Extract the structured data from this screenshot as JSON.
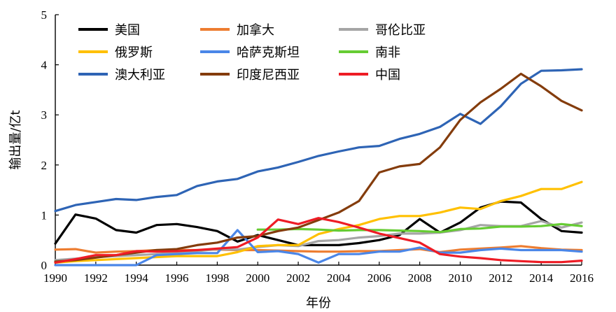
{
  "chart_data": {
    "type": "line",
    "title": "",
    "xlabel": "年份",
    "ylabel": "输出量/亿t",
    "xlim": [
      1990,
      2016
    ],
    "ylim": [
      0,
      5
    ],
    "xticks": [
      "1990",
      "1992",
      "1994",
      "1996",
      "1998",
      "2000",
      "2002",
      "2004",
      "2006",
      "2008",
      "2010",
      "2012",
      "2014",
      "2016"
    ],
    "yticks": [
      "0",
      "1",
      "2",
      "3",
      "4",
      "5"
    ],
    "grid": false,
    "legend_position": "top-left",
    "x": [
      1990,
      1991,
      1992,
      1993,
      1994,
      1995,
      1996,
      1997,
      1998,
      1999,
      2000,
      2001,
      2002,
      2003,
      2004,
      2005,
      2006,
      2007,
      2008,
      2009,
      2010,
      2011,
      2012,
      2013,
      2014,
      2015,
      2016
    ],
    "series": [
      {
        "name": "美国",
        "color": "#000000",
        "values": [
          0.43,
          1.01,
          0.93,
          0.7,
          0.65,
          0.8,
          0.82,
          0.76,
          0.68,
          0.47,
          0.6,
          0.5,
          0.4,
          0.4,
          0.4,
          0.44,
          0.5,
          0.6,
          0.92,
          0.65,
          0.85,
          1.15,
          1.27,
          1.25,
          0.92,
          0.68,
          0.65
        ]
      },
      {
        "name": "加拿大",
        "color": "#ed7d31",
        "values": [
          0.31,
          0.32,
          0.25,
          0.27,
          0.28,
          0.3,
          0.3,
          0.3,
          0.31,
          0.3,
          0.3,
          0.29,
          0.28,
          0.27,
          0.27,
          0.28,
          0.28,
          0.3,
          0.32,
          0.26,
          0.31,
          0.33,
          0.35,
          0.38,
          0.34,
          0.31,
          0.3
        ]
      },
      {
        "name": "哥伦比亚",
        "color": "#a5a5a5",
        "values": [
          0.1,
          0.13,
          0.16,
          0.18,
          0.2,
          0.22,
          0.25,
          0.28,
          0.32,
          0.31,
          0.36,
          0.4,
          0.38,
          0.48,
          0.5,
          0.55,
          0.58,
          0.63,
          0.63,
          0.65,
          0.7,
          0.8,
          0.78,
          0.78,
          0.88,
          0.75,
          0.85
        ]
      },
      {
        "name": "俄罗斯",
        "color": "#ffc000",
        "values": [
          0.05,
          0.08,
          0.1,
          0.12,
          0.14,
          0.16,
          0.18,
          0.18,
          0.18,
          0.26,
          0.38,
          0.4,
          0.4,
          0.62,
          0.72,
          0.8,
          0.92,
          0.98,
          0.98,
          1.05,
          1.15,
          1.12,
          1.28,
          1.38,
          1.52,
          1.52,
          1.66
        ]
      },
      {
        "name": "哈萨克斯坦",
        "color": "#4a86e8",
        "values": [
          0.0,
          0.0,
          0.0,
          0.0,
          0.0,
          0.2,
          0.22,
          0.24,
          0.24,
          0.7,
          0.26,
          0.28,
          0.22,
          0.05,
          0.22,
          0.22,
          0.27,
          0.27,
          0.35,
          0.25,
          0.25,
          0.3,
          0.33,
          0.3,
          0.3,
          0.3,
          0.27
        ]
      },
      {
        "name": "南非",
        "color": "#66cc33",
        "values": [
          null,
          null,
          null,
          null,
          null,
          null,
          null,
          null,
          null,
          null,
          0.71,
          0.71,
          0.72,
          0.71,
          0.69,
          0.7,
          0.7,
          0.69,
          0.68,
          0.66,
          0.72,
          0.73,
          0.77,
          0.77,
          0.78,
          0.82,
          0.78
        ]
      },
      {
        "name": "澳大利亚",
        "color": "#2e64b5",
        "values": [
          1.08,
          1.2,
          1.26,
          1.32,
          1.3,
          1.36,
          1.4,
          1.58,
          1.67,
          1.72,
          1.87,
          1.95,
          2.06,
          2.18,
          2.27,
          2.35,
          2.38,
          2.52,
          2.62,
          2.76,
          3.02,
          2.82,
          3.17,
          3.62,
          3.88,
          3.89,
          3.91
        ]
      },
      {
        "name": "印度尼西亚",
        "color": "#843c0c",
        "values": [
          0.07,
          0.1,
          0.15,
          0.2,
          0.25,
          0.3,
          0.32,
          0.4,
          0.45,
          0.55,
          0.58,
          0.68,
          0.75,
          0.9,
          1.05,
          1.28,
          1.85,
          1.97,
          2.02,
          2.35,
          2.9,
          3.25,
          3.52,
          3.82,
          3.57,
          3.28,
          3.09
        ]
      },
      {
        "name": "中国",
        "color": "#ee1c25",
        "values": [
          0.05,
          0.12,
          0.2,
          0.2,
          0.28,
          0.27,
          0.28,
          0.3,
          0.33,
          0.36,
          0.55,
          0.91,
          0.82,
          0.94,
          0.86,
          0.75,
          0.63,
          0.54,
          0.45,
          0.22,
          0.17,
          0.14,
          0.1,
          0.08,
          0.06,
          0.06,
          0.09
        ]
      }
    ]
  }
}
